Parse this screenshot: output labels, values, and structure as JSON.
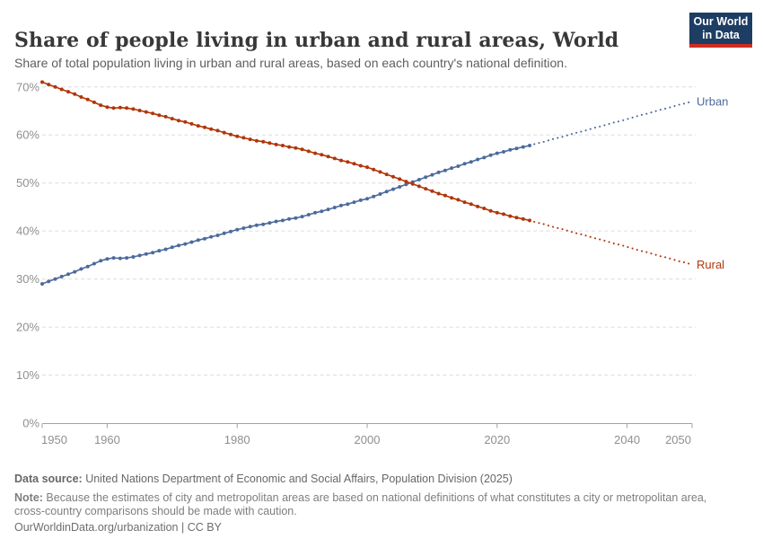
{
  "header": {
    "title": "Share of people living in urban and rural areas, World",
    "subtitle": "Share of total population living in urban and rural areas, based on each country's national definition.",
    "logo": {
      "line1": "Our World",
      "line2": "in Data",
      "bg_color": "#1d3d63",
      "bar_color": "#cf2d22"
    }
  },
  "footer": {
    "source_label": "Data source:",
    "source_text": " United Nations Department of Economic and Social Affairs, Population Division (2025)",
    "note_label": "Note:",
    "note_text": " Because the estimates of city and metropolitan areas are based on national definitions of what constitutes a city or metropolitan area, cross-country comparisons should be made with caution.",
    "citation": "OurWorldinData.org/urbanization | CC BY"
  },
  "chart_data": {
    "type": "line",
    "title": "Share of people living in urban and rural areas, World",
    "subtitle": "Share of total population living in urban and rural areas, based on each country's national definition.",
    "xlabel": "",
    "ylabel": "",
    "ylim": [
      0,
      70
    ],
    "yticks": [
      0,
      10,
      20,
      30,
      40,
      50,
      60,
      70
    ],
    "ytick_suffix": "%",
    "xticks": [
      1950,
      1960,
      1980,
      2000,
      2020,
      2040,
      2050
    ],
    "grid": "dashed horizontal",
    "legend_position": "end-of-line labels",
    "projection_start": 2025,
    "projection_style": "dotted",
    "x": [
      1950,
      1951,
      1952,
      1953,
      1954,
      1955,
      1956,
      1957,
      1958,
      1959,
      1960,
      1961,
      1962,
      1963,
      1964,
      1965,
      1966,
      1967,
      1968,
      1969,
      1970,
      1971,
      1972,
      1973,
      1974,
      1975,
      1976,
      1977,
      1978,
      1979,
      1980,
      1981,
      1982,
      1983,
      1984,
      1985,
      1986,
      1987,
      1988,
      1989,
      1990,
      1991,
      1992,
      1993,
      1994,
      1995,
      1996,
      1997,
      1998,
      1999,
      2000,
      2001,
      2002,
      2003,
      2004,
      2005,
      2006,
      2007,
      2008,
      2009,
      2010,
      2011,
      2012,
      2013,
      2014,
      2015,
      2016,
      2017,
      2018,
      2019,
      2020,
      2021,
      2022,
      2023,
      2024,
      2025,
      2026,
      2027,
      2028,
      2029,
      2030,
      2031,
      2032,
      2033,
      2034,
      2035,
      2036,
      2037,
      2038,
      2039,
      2040,
      2041,
      2042,
      2043,
      2044,
      2045,
      2046,
      2047,
      2048,
      2049,
      2050
    ],
    "series": [
      {
        "name": "Urban",
        "color": "#4C6A9C",
        "values": [
          29.0,
          29.5,
          30.0,
          30.5,
          31.0,
          31.5,
          32.1,
          32.6,
          33.2,
          33.8,
          34.2,
          34.4,
          34.3,
          34.4,
          34.6,
          34.9,
          35.2,
          35.5,
          35.9,
          36.2,
          36.6,
          37.0,
          37.3,
          37.7,
          38.1,
          38.4,
          38.8,
          39.1,
          39.5,
          39.9,
          40.3,
          40.6,
          40.9,
          41.2,
          41.4,
          41.7,
          42.0,
          42.2,
          42.5,
          42.7,
          43.0,
          43.4,
          43.8,
          44.1,
          44.5,
          44.9,
          45.3,
          45.6,
          46.0,
          46.4,
          46.7,
          47.2,
          47.7,
          48.2,
          48.7,
          49.2,
          49.7,
          50.2,
          50.7,
          51.2,
          51.7,
          52.2,
          52.6,
          53.1,
          53.5,
          54.0,
          54.4,
          54.9,
          55.3,
          55.8,
          56.2,
          56.5,
          56.9,
          57.2,
          57.5,
          57.8,
          58.2,
          58.5,
          58.9,
          59.3,
          59.6,
          60.0,
          60.4,
          60.7,
          61.1,
          61.5,
          61.8,
          62.2,
          62.6,
          62.9,
          63.3,
          63.7,
          64.1,
          64.4,
          64.8,
          65.2,
          65.5,
          65.9,
          66.3,
          66.6,
          67.0
        ]
      },
      {
        "name": "Rural",
        "color": "#B13507",
        "values": [
          71.0,
          70.5,
          70.0,
          69.5,
          69.0,
          68.5,
          67.9,
          67.4,
          66.8,
          66.2,
          65.8,
          65.6,
          65.7,
          65.6,
          65.4,
          65.1,
          64.8,
          64.5,
          64.1,
          63.8,
          63.4,
          63.0,
          62.7,
          62.3,
          61.9,
          61.6,
          61.2,
          60.9,
          60.5,
          60.1,
          59.7,
          59.4,
          59.1,
          58.8,
          58.6,
          58.3,
          58.0,
          57.8,
          57.5,
          57.3,
          57.0,
          56.6,
          56.2,
          55.9,
          55.5,
          55.1,
          54.7,
          54.4,
          54.0,
          53.6,
          53.3,
          52.8,
          52.3,
          51.8,
          51.3,
          50.8,
          50.3,
          49.8,
          49.3,
          48.8,
          48.3,
          47.8,
          47.4,
          46.9,
          46.5,
          46.0,
          45.6,
          45.1,
          44.7,
          44.2,
          43.8,
          43.5,
          43.1,
          42.8,
          42.5,
          42.2,
          41.8,
          41.5,
          41.1,
          40.7,
          40.4,
          40.0,
          39.6,
          39.3,
          38.9,
          38.5,
          38.2,
          37.8,
          37.4,
          37.1,
          36.7,
          36.3,
          35.9,
          35.6,
          35.2,
          34.8,
          34.5,
          34.1,
          33.7,
          33.4,
          33.0
        ]
      }
    ]
  }
}
